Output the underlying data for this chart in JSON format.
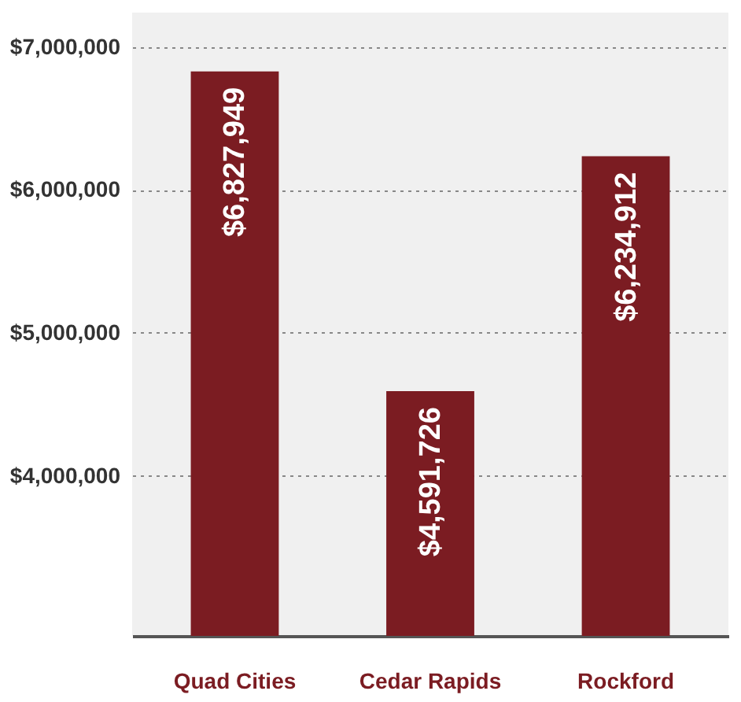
{
  "chart_data": {
    "type": "bar",
    "categories": [
      "Quad Cities",
      "Cedar Rapids",
      "Rockford"
    ],
    "values": [
      6827949,
      4591726,
      6234912
    ],
    "color": "#7b1c22",
    "ylim": [
      2880000,
      7240000
    ],
    "yticks": [
      {
        "value": 4000000,
        "label": "$4,000,000"
      },
      {
        "value": 5000000,
        "label": "$5,000,000"
      },
      {
        "value": 6000000,
        "label": "$6,000,000"
      },
      {
        "value": 7000000,
        "label": "$7,000,000"
      }
    ],
    "grid": "y",
    "value_labels": [
      "$6,827,949",
      "$4,591,726",
      "$6,234,912"
    ]
  }
}
